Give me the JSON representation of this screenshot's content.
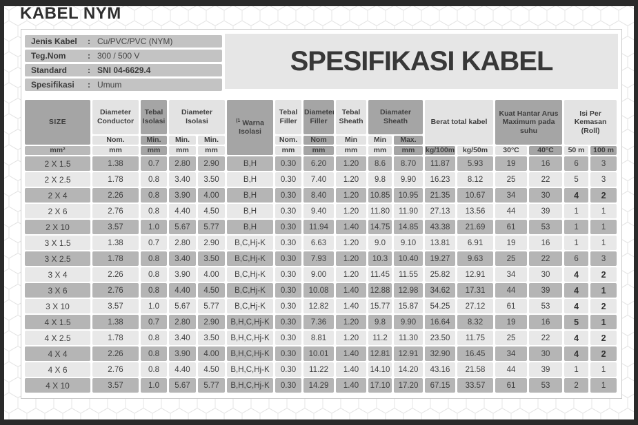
{
  "page": {
    "title": "KABEL NYM",
    "spec_title": "SPESIFIKASI KABEL"
  },
  "info": {
    "rows": [
      {
        "label": "Jenis Kabel",
        "sep": ":",
        "value": "Cu/PVC/PVC (NYM)",
        "bold_value": false
      },
      {
        "label": "Teg.Nom",
        "sep": ":",
        "value": "300 / 500 V",
        "bold_value": false
      },
      {
        "label": "Standard",
        "sep": ":",
        "value": "SNI 04-6629.4",
        "bold_value": true
      },
      {
        "label": "Spesifikasi",
        "sep": ":",
        "value": "Umum",
        "bold_value": false
      }
    ]
  },
  "table": {
    "header": {
      "size": "SIZE",
      "diameter_conductor": "Diameter Conductor",
      "tebal_isolasi": "Tebal Isolasi",
      "diameter_isolasi": "Diameter Isolasi",
      "warna_marker": "(1",
      "warna_isolasi": "Warna Isolasi",
      "tebal_filler": "Tebal Filler",
      "diameter_filler": "Diameter Filler",
      "tebal_sheath": "Tebal Sheath",
      "diamater_sheath": "Diamater Sheath",
      "berat_total_kabel": "Berat total kabel",
      "kuat_hantar": "Kuat Hantar Arus Maximum pada suhu",
      "isi_per_kemasan": "Isi Per Kemasan (Roll)"
    },
    "subheader": [
      "Nom.",
      "Min.",
      "Min.",
      "Min.",
      "Nom.",
      "Nom",
      "Min",
      "Min",
      "Max."
    ],
    "units": [
      "mm²",
      "mm",
      "mm",
      "mm",
      "mm",
      "mm",
      "mm",
      "mm",
      "mm",
      "mm",
      "kg/100m",
      "kg/50m",
      "30°C",
      "40°C",
      "50 m",
      "100 m"
    ],
    "rows": [
      [
        "2 X 1.5",
        "1.38",
        "0.7",
        "2.80",
        "2.90",
        "B,H",
        "0.30",
        "6.20",
        "1.20",
        "8.6",
        "8.70",
        "11.87",
        "5.93",
        "19",
        "16",
        "6",
        "3"
      ],
      [
        "2 X 2.5",
        "1.78",
        "0.8",
        "3.40",
        "3.50",
        "B,H",
        "0.30",
        "7.40",
        "1.20",
        "9.8",
        "9.90",
        "16.23",
        "8.12",
        "25",
        "22",
        "5",
        "3"
      ],
      [
        "2 X 4",
        "2.26",
        "0.8",
        "3.90",
        "4.00",
        "B,H",
        "0.30",
        "8.40",
        "1.20",
        "10.85",
        "10.95",
        "21.35",
        "10.67",
        "34",
        "30",
        "4",
        "2"
      ],
      [
        "2 X 6",
        "2.76",
        "0.8",
        "4.40",
        "4.50",
        "B,H",
        "0.30",
        "9.40",
        "1.20",
        "11.80",
        "11.90",
        "27.13",
        "13.56",
        "44",
        "39",
        "1",
        "1"
      ],
      [
        "2 X 10",
        "3.57",
        "1.0",
        "5.67",
        "5.77",
        "B,H",
        "0.30",
        "11.94",
        "1.40",
        "14.75",
        "14.85",
        "43.38",
        "21.69",
        "61",
        "53",
        "1",
        "1"
      ],
      [
        "3 X 1.5",
        "1.38",
        "0.7",
        "2.80",
        "2.90",
        "B,C,Hj-K",
        "0.30",
        "6.63",
        "1.20",
        "9.0",
        "9.10",
        "13.81",
        "6.91",
        "19",
        "16",
        "1",
        "1"
      ],
      [
        "3 X 2.5",
        "1.78",
        "0.8",
        "3.40",
        "3.50",
        "B,C,Hj-K",
        "0.30",
        "7.93",
        "1.20",
        "10.3",
        "10.40",
        "19.27",
        "9.63",
        "25",
        "22",
        "6",
        "3"
      ],
      [
        "3 X 4",
        "2.26",
        "0.8",
        "3.90",
        "4.00",
        "B,C,Hj-K",
        "0.30",
        "9.00",
        "1.20",
        "11.45",
        "11.55",
        "25.82",
        "12.91",
        "34",
        "30",
        "4",
        "2"
      ],
      [
        "3 X 6",
        "2.76",
        "0.8",
        "4.40",
        "4.50",
        "B,C,Hj-K",
        "0.30",
        "10.08",
        "1.40",
        "12.88",
        "12.98",
        "34.62",
        "17.31",
        "44",
        "39",
        "4",
        "1"
      ],
      [
        "3 X 10",
        "3.57",
        "1.0",
        "5.67",
        "5.77",
        "B,C,Hj-K",
        "0.30",
        "12.82",
        "1.40",
        "15.77",
        "15.87",
        "54.25",
        "27.12",
        "61",
        "53",
        "4",
        "2"
      ],
      [
        "4 X 1.5",
        "1.38",
        "0.7",
        "2.80",
        "2.90",
        "B,H,C,Hj-K",
        "0.30",
        "7.36",
        "1.20",
        "9.8",
        "9.90",
        "16.64",
        "8.32",
        "19",
        "16",
        "5",
        "1"
      ],
      [
        "4 X 2.5",
        "1.78",
        "0.8",
        "3.40",
        "3.50",
        "B,H,C,Hj-K",
        "0.30",
        "8.81",
        "1.20",
        "11.2",
        "11.30",
        "23.50",
        "11.75",
        "25",
        "22",
        "4",
        "2"
      ],
      [
        "4 X 4",
        "2.26",
        "0.8",
        "3.90",
        "4.00",
        "B,H,C,Hj-K",
        "0.30",
        "10.01",
        "1.40",
        "12.81",
        "12.91",
        "32.90",
        "16.45",
        "34",
        "30",
        "4",
        "2"
      ],
      [
        "4 X 6",
        "2.76",
        "0.8",
        "4.40",
        "4.50",
        "B,H,C,Hj-K",
        "0.30",
        "11.22",
        "1.40",
        "14.10",
        "14.20",
        "43.16",
        "21.58",
        "44",
        "39",
        "1",
        "1"
      ],
      [
        "4 X 10",
        "3.57",
        "1.0",
        "5.67",
        "5.77",
        "B,H,C,Hj-K",
        "0.30",
        "14.29",
        "1.40",
        "17.10",
        "17.20",
        "67.15",
        "33.57",
        "61",
        "53",
        "2",
        "1"
      ]
    ],
    "roll_bold": [
      [
        false,
        false
      ],
      [
        false,
        false
      ],
      [
        true,
        true
      ],
      [
        false,
        false
      ],
      [
        false,
        false
      ],
      [
        false,
        false
      ],
      [
        false,
        false
      ],
      [
        true,
        true
      ],
      [
        true,
        true
      ],
      [
        true,
        true
      ],
      [
        true,
        true
      ],
      [
        true,
        true
      ],
      [
        true,
        true
      ],
      [
        false,
        false
      ],
      [
        false,
        false
      ]
    ]
  },
  "colors": {
    "frame": "#2a2a2a",
    "header_dark": "#a5a5a5",
    "header_light": "#e3e3e3",
    "row_dark": "#b5b5b5",
    "row_light": "#e8e8e8",
    "info_bar": "#c3c3c3",
    "title_box": "#e6e6e6"
  }
}
